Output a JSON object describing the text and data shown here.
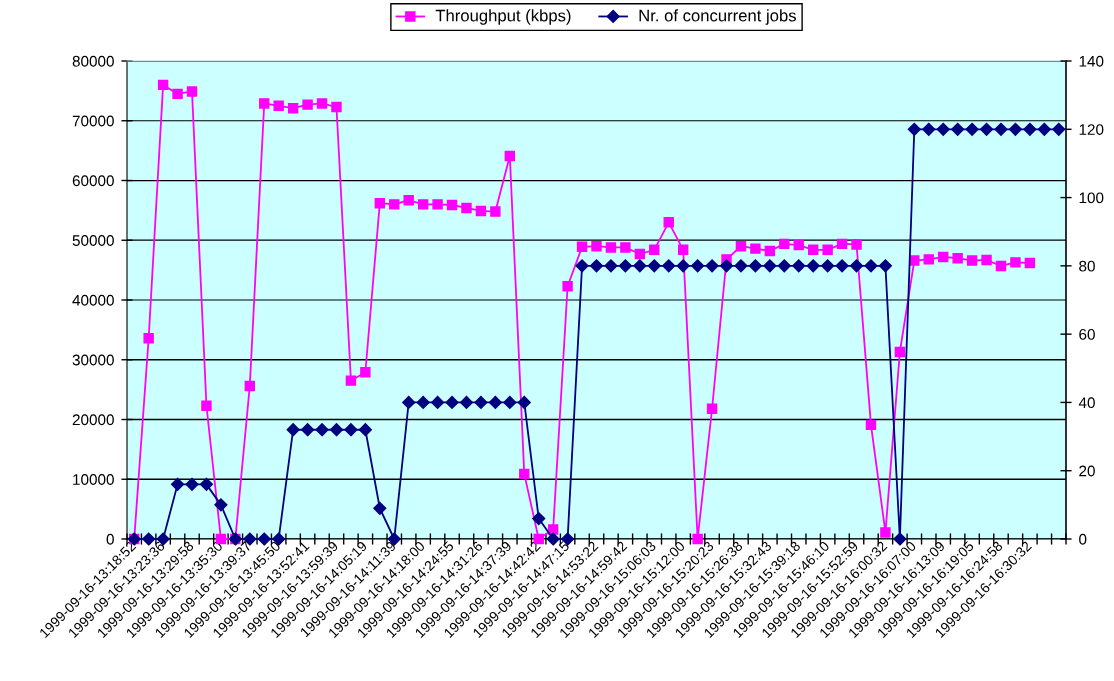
{
  "chart_data": {
    "type": "line",
    "categories": [
      "1999-09-16-13:18:52",
      null,
      "1999-09-16-13:23:36",
      null,
      "1999-09-16-13:29:58",
      null,
      "1999-09-16-13:35:30",
      null,
      "1999-09-16-13:39:37",
      null,
      "1999-09-16-13:45:50",
      null,
      "1999-09-16-13:52:41",
      null,
      "1999-09-16-13:59:39",
      null,
      "1999-09-16-14:05:19",
      null,
      "1999-09-16-14:11:39",
      null,
      "1999-09-16-14:18:00",
      null,
      "1999-09-16-14:24:55",
      null,
      "1999-09-16-14:31:26",
      null,
      "1999-09-16-14:37:39",
      null,
      "1999-09-16-14:42:42",
      null,
      "1999-09-16-14:47:15",
      null,
      "1999-09-16-14:53:22",
      null,
      "1999-09-16-14:59:42",
      null,
      "1999-09-16-15:06:03",
      null,
      "1999-09-16-15:12:00",
      null,
      "1999-09-16-15:20:23",
      null,
      "1999-09-16-15:26:38",
      null,
      "1999-09-16-15:32:43",
      null,
      "1999-09-16-15:39:18",
      null,
      "1999-09-16-15:46:10",
      null,
      "1999-09-16-15:52:59",
      null,
      "1999-09-16-16:00:32",
      null,
      "1999-09-16-16:07:00",
      null,
      "1999-09-16-16:13:09",
      null,
      "1999-09-16-16:19:05",
      null,
      "1999-09-16-16:24:58",
      null,
      "1999-09-16-16:30:32",
      null,
      null
    ],
    "series": [
      {
        "name": "Throughput (kbps)",
        "color": "#ff00ff",
        "marker": "square",
        "values": [
          0,
          33600,
          76000,
          74500,
          74900,
          22300,
          0,
          0,
          25600,
          72900,
          72500,
          72100,
          72700,
          72900,
          72300,
          26500,
          27900,
          56200,
          56000,
          56700,
          56000,
          56000,
          55900,
          55400,
          54900,
          54800,
          64100,
          10900,
          0,
          1600,
          42300,
          48900,
          49000,
          48800,
          48800,
          47700,
          48400,
          53000,
          48400,
          0,
          21800,
          46800,
          49000,
          48600,
          48200,
          49400,
          49200,
          48400,
          48400,
          49400,
          49300,
          19100,
          1100,
          31300,
          46600,
          46800,
          47200,
          47000,
          46600,
          46700,
          45700,
          46300,
          46200,
          null,
          null
        ]
      },
      {
        "name": "Nr. of concurrent jobs",
        "color": "#000080",
        "marker": "diamond",
        "axis": "y2",
        "values": [
          0,
          0,
          0,
          16,
          16,
          16,
          10,
          0,
          0,
          0,
          0,
          32,
          32,
          32,
          32,
          32,
          32,
          9,
          0,
          40,
          40,
          40,
          40,
          40,
          40,
          40,
          40,
          40,
          6,
          0,
          0,
          80,
          80,
          80,
          80,
          80,
          80,
          80,
          80,
          80,
          80,
          80,
          80,
          80,
          80,
          80,
          80,
          80,
          80,
          80,
          80,
          80,
          80,
          0,
          120,
          120,
          120,
          120,
          120,
          120,
          120,
          120,
          120,
          120,
          120
        ]
      }
    ],
    "ylim": [
      0,
      80000
    ],
    "yticks": [
      0,
      10000,
      20000,
      30000,
      40000,
      50000,
      60000,
      70000,
      80000
    ],
    "y2lim": [
      0,
      140
    ],
    "y2ticks": [
      0,
      20,
      40,
      60,
      80,
      100,
      120,
      140
    ],
    "grid": "y",
    "legend": "top",
    "line_style": "solid"
  }
}
